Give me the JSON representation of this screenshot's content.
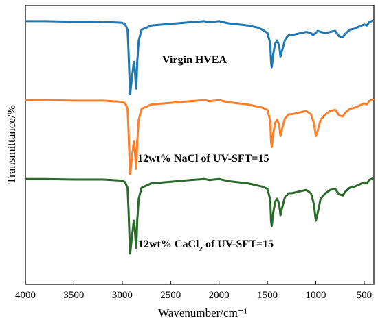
{
  "chart_data": {
    "type": "line",
    "title": "",
    "xlabel": "Wavenumber/cm⁻¹",
    "ylabel": "Transmittance/%",
    "xlim": [
      4000,
      400
    ],
    "x_reversed": true,
    "y_ticks_shown": false,
    "grid": false,
    "legend": "none",
    "x_ticks": [
      "4000",
      "3500",
      "3000",
      "2500",
      "2000",
      "1500",
      "1000",
      "500"
    ],
    "x_tick_values": [
      4000,
      3500,
      3000,
      2500,
      2000,
      1500,
      1000,
      500
    ],
    "annotations": [
      {
        "text": "Virgin HVEA",
        "series": 0
      },
      {
        "text_parts": [
          "12wt% NaCl of UV-SFT=15"
        ],
        "series": 1
      },
      {
        "text_parts": [
          "12wt% CaCl",
          "2",
          " of UV-SFT=15"
        ],
        "series": 2
      }
    ],
    "series": [
      {
        "color": "#1f77b4",
        "x": [
          4000,
          3800,
          3500,
          3300,
          3200,
          3100,
          3000,
          2970,
          2945,
          2935,
          2925,
          2918,
          2900,
          2880,
          2870,
          2860,
          2855,
          2845,
          2830,
          2800,
          2700,
          2500,
          2300,
          2150,
          2100,
          2000,
          1900,
          1800,
          1700,
          1600,
          1550,
          1500,
          1470,
          1462,
          1455,
          1440,
          1420,
          1400,
          1378,
          1365,
          1350,
          1320,
          1300,
          1280,
          1250,
          1200,
          1150,
          1100,
          1050,
          1030,
          1000,
          980,
          950,
          900,
          850,
          800,
          760,
          720,
          700,
          650,
          600,
          550,
          500,
          470,
          450,
          400
        ],
        "y": [
          93,
          93,
          92.5,
          92.5,
          92,
          92,
          91.5,
          90,
          85,
          65,
          40,
          25,
          40,
          55,
          48,
          35,
          30,
          55,
          75,
          85,
          89,
          90.5,
          92,
          93,
          92,
          93,
          91,
          90,
          89,
          87,
          85,
          82,
          72,
          55,
          50,
          62,
          72,
          75,
          70,
          60,
          65,
          75,
          78,
          80,
          80,
          81,
          82,
          83,
          82,
          80,
          82,
          84,
          83,
          82,
          83,
          84,
          79,
          78,
          81,
          85,
          86,
          88,
          90,
          89,
          92,
          94
        ]
      },
      {
        "color": "#ff7f2a",
        "x": [
          4000,
          3800,
          3500,
          3300,
          3200,
          3100,
          3000,
          2970,
          2945,
          2935,
          2925,
          2918,
          2900,
          2880,
          2870,
          2860,
          2855,
          2845,
          2830,
          2800,
          2700,
          2500,
          2300,
          2150,
          2100,
          2000,
          1900,
          1800,
          1700,
          1600,
          1550,
          1500,
          1470,
          1462,
          1455,
          1440,
          1420,
          1400,
          1378,
          1365,
          1350,
          1320,
          1300,
          1280,
          1250,
          1200,
          1150,
          1100,
          1050,
          1020,
          1000,
          980,
          950,
          900,
          850,
          800,
          760,
          720,
          700,
          650,
          600,
          550,
          500,
          470,
          450,
          400
        ],
        "y": [
          93,
          93,
          92.5,
          92.5,
          92.5,
          92,
          91.5,
          90,
          85,
          65,
          40,
          25,
          40,
          55,
          48,
          35,
          30,
          55,
          75,
          85,
          89,
          90.5,
          92,
          93,
          92,
          93,
          91,
          90,
          89,
          87,
          86,
          84,
          74,
          55,
          50,
          62,
          72,
          75,
          70,
          60,
          66,
          76,
          78,
          80,
          80,
          81,
          82,
          83,
          80,
          72,
          60,
          65,
          75,
          80,
          83,
          84,
          79,
          78,
          81,
          85,
          86,
          88,
          90,
          89,
          92,
          94
        ]
      },
      {
        "color": "#2a6a2a",
        "x": [
          4000,
          3800,
          3500,
          3300,
          3200,
          3100,
          3000,
          2970,
          2945,
          2935,
          2925,
          2918,
          2900,
          2880,
          2870,
          2860,
          2855,
          2845,
          2830,
          2800,
          2700,
          2500,
          2300,
          2150,
          2100,
          2000,
          1900,
          1800,
          1700,
          1600,
          1550,
          1500,
          1470,
          1462,
          1455,
          1440,
          1420,
          1400,
          1378,
          1365,
          1350,
          1320,
          1300,
          1280,
          1250,
          1200,
          1150,
          1100,
          1050,
          1020,
          1000,
          980,
          950,
          900,
          850,
          800,
          760,
          720,
          700,
          650,
          600,
          550,
          500,
          470,
          450,
          400
        ],
        "y": [
          93,
          93,
          92.5,
          92.5,
          92.5,
          92,
          91.5,
          90,
          85,
          65,
          40,
          25,
          40,
          55,
          48,
          35,
          30,
          55,
          75,
          85,
          89,
          90.5,
          92,
          93,
          92,
          93,
          91,
          90,
          89,
          87,
          86,
          84,
          74,
          55,
          50,
          62,
          72,
          75,
          70,
          60,
          66,
          76,
          78,
          80,
          80,
          81,
          82,
          83,
          80,
          70,
          55,
          62,
          75,
          80,
          83,
          84,
          79,
          78,
          81,
          85,
          86,
          88,
          90,
          89,
          92,
          94
        ]
      }
    ]
  }
}
